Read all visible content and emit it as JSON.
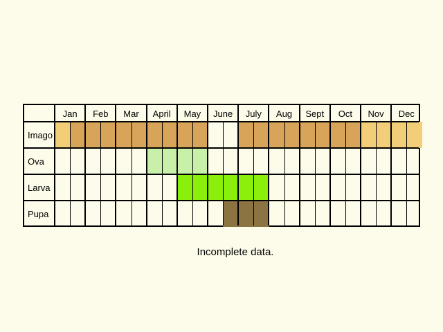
{
  "months": [
    "Jan",
    "Feb",
    "Mar",
    "April",
    "May",
    "June",
    "July",
    "Aug",
    "Sept",
    "Oct",
    "Nov",
    "Dec"
  ],
  "stages": [
    {
      "name": "Imago",
      "cells": [
        1,
        2,
        2,
        2,
        2,
        2,
        2,
        2,
        2,
        2,
        0,
        0,
        2,
        2,
        2,
        2,
        2,
        2,
        2,
        2,
        1,
        1,
        1,
        1
      ]
    },
    {
      "name": "Ova",
      "cells": [
        0,
        0,
        0,
        0,
        0,
        0,
        3,
        3,
        3,
        3,
        0,
        0,
        0,
        0,
        0,
        0,
        0,
        0,
        0,
        0,
        0,
        0,
        0,
        0
      ]
    },
    {
      "name": "Larva",
      "cells": [
        0,
        0,
        0,
        0,
        0,
        0,
        0,
        0,
        4,
        4,
        4,
        4,
        4,
        4,
        0,
        0,
        0,
        0,
        0,
        0,
        0,
        0,
        0,
        0
      ]
    },
    {
      "name": "Pupa",
      "cells": [
        0,
        0,
        0,
        0,
        0,
        0,
        0,
        0,
        0,
        0,
        0,
        5,
        5,
        5,
        0,
        0,
        0,
        0,
        0,
        0,
        0,
        0,
        0,
        0
      ]
    }
  ],
  "legend_colors": {
    "0": "",
    "1": "#f3ce78",
    "2": "#d8a45a",
    "3": "#c8f0a8",
    "4": "#8bef0c",
    "5": "#8c7442"
  },
  "note": "Incomplete data."
}
